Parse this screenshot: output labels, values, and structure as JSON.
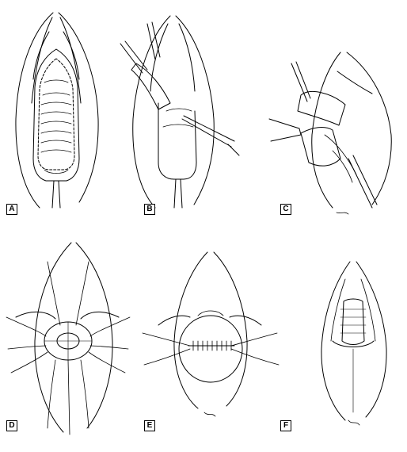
{
  "figure": {
    "panels": [
      {
        "label": "A"
      },
      {
        "label": "B"
      },
      {
        "label": "C"
      },
      {
        "label": "D"
      },
      {
        "label": "E"
      },
      {
        "label": "F"
      }
    ]
  }
}
